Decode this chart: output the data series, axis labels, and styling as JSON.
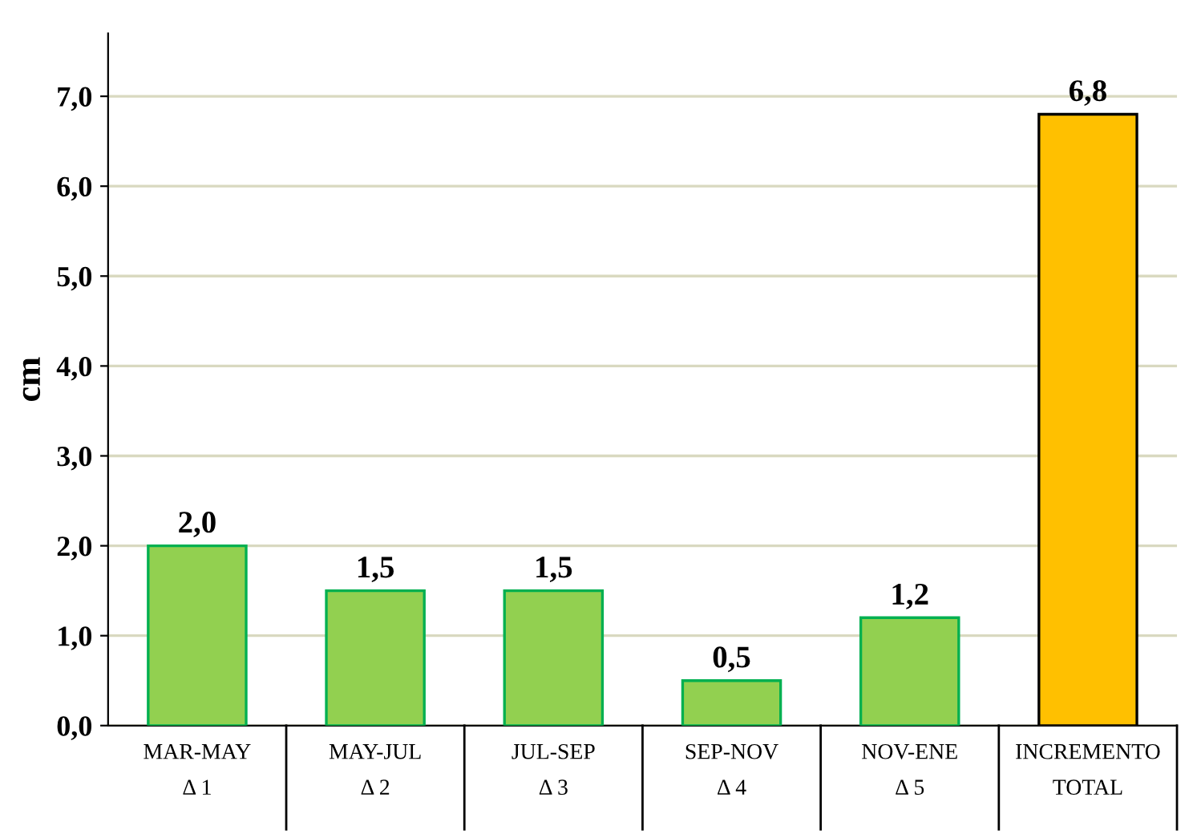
{
  "chart_data": {
    "type": "bar",
    "ylabel": "cm",
    "categories": [
      "MAR-MAY\nΔ 1",
      "MAY-JUL\nΔ 2",
      "JUL-SEP\nΔ 3",
      "SEP-NOV\nΔ 4",
      "NOV-ENE\nΔ 5",
      "INCREMENTO\nTOTAL"
    ],
    "values": [
      2.0,
      1.5,
      1.5,
      0.5,
      1.2,
      6.8
    ],
    "colors": [
      "#92d050",
      "#92d050",
      "#92d050",
      "#92d050",
      "#92d050",
      "#ffc000"
    ],
    "value_labels": [
      "2,0",
      "1,5",
      "1,5",
      "0,5",
      "1,2",
      "6,8"
    ],
    "ylim": [
      0,
      7.7
    ],
    "yticks": [
      {
        "value": 0,
        "label": "0,0"
      },
      {
        "value": 1,
        "label": "1,0"
      },
      {
        "value": 2,
        "label": "2,0"
      },
      {
        "value": 3,
        "label": "3,0"
      },
      {
        "value": 4,
        "label": "4,0"
      },
      {
        "value": 5,
        "label": "5,0"
      },
      {
        "value": 6,
        "label": "6,0"
      },
      {
        "value": 7,
        "label": "7,0"
      }
    ],
    "grid": "y"
  }
}
